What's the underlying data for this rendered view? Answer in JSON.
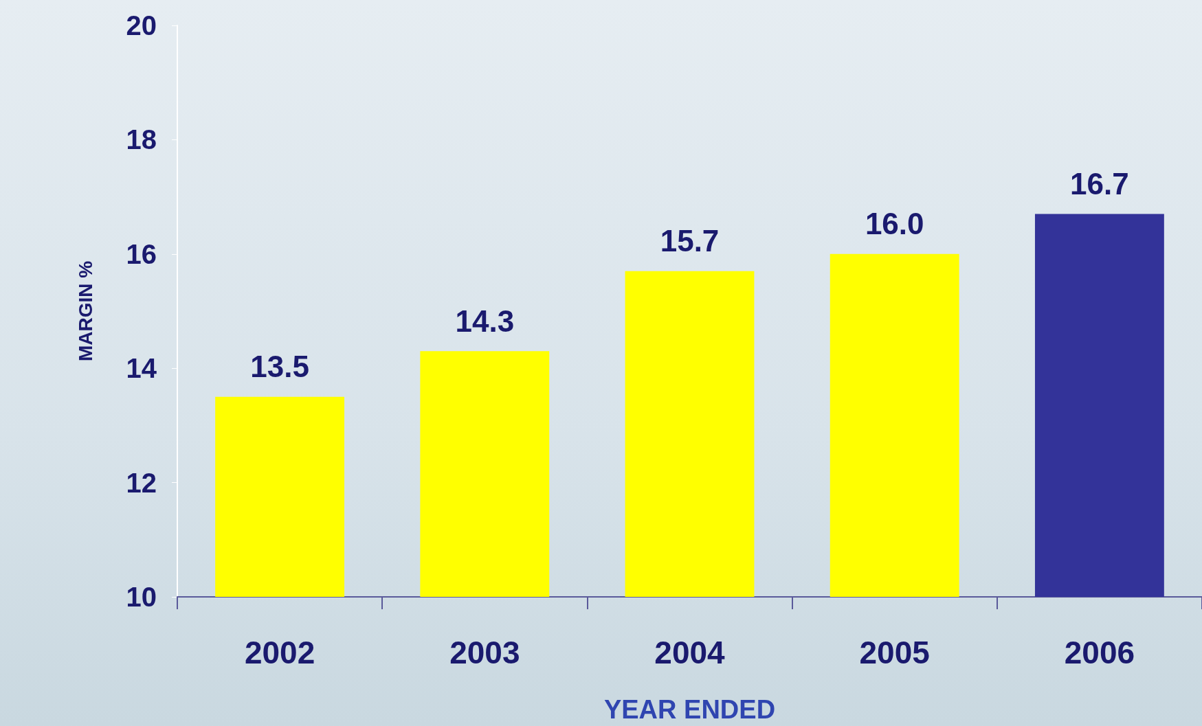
{
  "chart_data": {
    "type": "bar",
    "xlabel": "YEAR ENDED",
    "ylabel": "MARGIN %",
    "categories": [
      "2002",
      "2003",
      "2004",
      "2005",
      "2006"
    ],
    "values": [
      13.5,
      14.3,
      15.7,
      16.0,
      16.7
    ],
    "colors": [
      "#ffff00",
      "#ffff00",
      "#ffff00",
      "#ffff00",
      "#333399"
    ],
    "value_labels": [
      "13.5",
      "14.3",
      "15.7",
      "16.0",
      "16.7"
    ],
    "ylim": [
      10,
      20
    ],
    "yticks": [
      10,
      12,
      14,
      16,
      18,
      20
    ],
    "grid": false
  }
}
